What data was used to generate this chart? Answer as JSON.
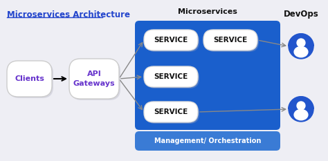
{
  "bg_color": "#eeeef4",
  "title": "Microservices Architecture",
  "title_color": "#2244cc",
  "blue_box_color": "#1a5fcc",
  "clients_text": "Clients",
  "api_text": "API\nGateways",
  "microservices_label": "Microservices",
  "devops_label": "DevOps",
  "mgmt_label": "Management/ Orchestration",
  "mgmt_box_color": "#3a7bd5",
  "arrow_color": "#888888",
  "purple_color": "#6633cc",
  "person_color": "#2255cc"
}
